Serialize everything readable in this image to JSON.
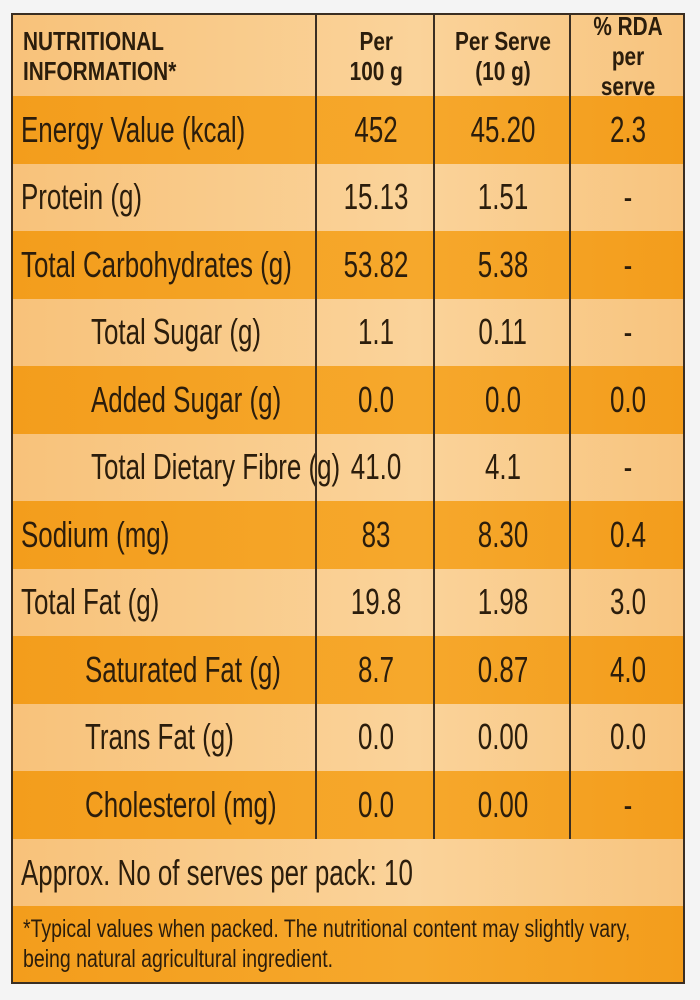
{
  "header": {
    "col0_line1": "NUTRITIONAL",
    "col0_line2": "INFORMATION*",
    "col1_line1": "Per",
    "col1_line2": "100 g",
    "col2_line1": "Per Serve",
    "col2_line2": "(10 g)",
    "col3_line1": "% RDA",
    "col3_line2": "per serve"
  },
  "rows": [
    {
      "label": "Energy Value  (kcal)",
      "per100": "452",
      "perServe": "45.20",
      "rda": "2.3"
    },
    {
      "label": "Protein  (g)",
      "per100": "15.13",
      "perServe": "1.51",
      "rda": "-"
    },
    {
      "label": "Total Carbohydrates  (g)",
      "per100": "53.82",
      "perServe": "5.38",
      "rda": "-"
    },
    {
      "label": "Total Sugar (g)",
      "per100": "1.1",
      "perServe": "0.11",
      "rda": "-"
    },
    {
      "label": "Added Sugar (g)",
      "per100": "0.0",
      "perServe": "0.0",
      "rda": "0.0"
    },
    {
      "label": "Total Dietary Fibre (g)",
      "per100": "41.0",
      "perServe": "4.1",
      "rda": "-"
    },
    {
      "label": "Sodium (mg)",
      "per100": "83",
      "perServe": "8.30",
      "rda": "0.4"
    },
    {
      "label": "Total Fat (g)",
      "per100": "19.8",
      "perServe": "1.98",
      "rda": "3.0"
    },
    {
      "label": "Saturated Fat (g)",
      "per100": "8.7",
      "perServe": "0.87",
      "rda": "4.0"
    },
    {
      "label": "Trans Fat (g)",
      "per100": "0.0",
      "perServe": "0.00",
      "rda": "0.0"
    },
    {
      "label": "Cholesterol  (mg)",
      "per100": "0.0",
      "perServe": "0.00",
      "rda": "-"
    }
  ],
  "serves": "Approx. No of serves per pack: 10",
  "footnote_line1": "*Typical values when packed. The nutritional content may slightly vary,",
  "footnote_line2": "being natural agricultural ingredient.",
  "colors": {
    "dark_row": "#f4a020",
    "light_row": "#f9c880",
    "border": "#3a2e22",
    "text": "#2b1d0c"
  }
}
